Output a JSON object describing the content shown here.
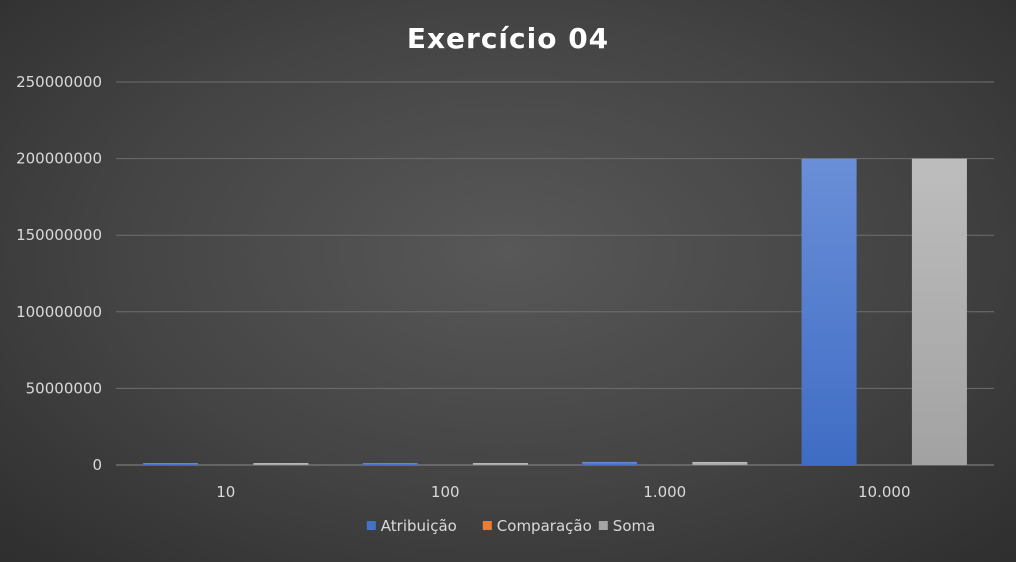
{
  "chart_data": {
    "type": "bar",
    "title": "Exercício 04",
    "xlabel": "",
    "ylabel": "",
    "categories": [
      "10",
      "100",
      "1.000",
      "10.000"
    ],
    "series": [
      {
        "name": "Atribuição",
        "color": "#4472c4",
        "values": [
          200,
          20000,
          2000000,
          200000000
        ]
      },
      {
        "name": "Comparação",
        "color": "#ed7d31",
        "values": [
          0,
          0,
          0,
          0
        ]
      },
      {
        "name": "Soma",
        "color": "#a5a5a5",
        "values": [
          200,
          20000,
          2000000,
          200000000
        ]
      }
    ],
    "ylim": [
      0,
      250000000
    ],
    "yticks": [
      "0",
      "50000000",
      "100000000",
      "150000000",
      "200000000",
      "250000000"
    ],
    "grid": true,
    "legend_position": "bottom"
  }
}
